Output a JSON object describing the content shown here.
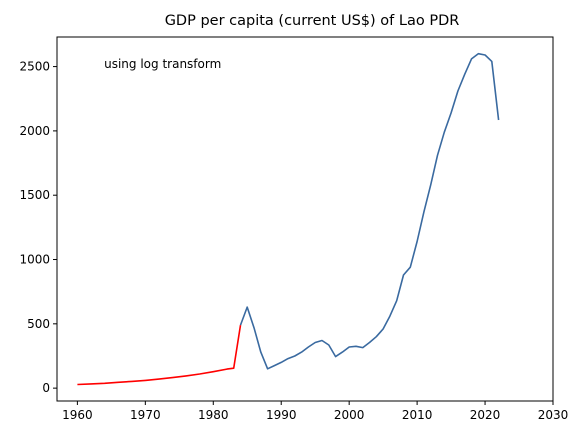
{
  "chart_data": {
    "type": "line",
    "title": "GDP per capita (current US$) of Lao PDR",
    "annotation": "using log transform",
    "xlabel": "",
    "ylabel": "",
    "xlim": [
      1957,
      2030
    ],
    "ylim": [
      -100,
      2730
    ],
    "xticks": [
      1960,
      1970,
      1980,
      1990,
      2000,
      2010,
      2020,
      2030
    ],
    "yticks": [
      0,
      500,
      1000,
      1500,
      2000,
      2500
    ],
    "grid": false,
    "colors": {
      "estimated": "#ff0000",
      "actual": "#3a6aa0"
    },
    "series": [
      {
        "role": "estimated",
        "x": [
          1960,
          1962,
          1964,
          1966,
          1968,
          1970,
          1972,
          1974,
          1976,
          1978,
          1980,
          1982,
          1983,
          1984
        ],
        "y": [
          28,
          33,
          38,
          45,
          52,
          60,
          70,
          82,
          95,
          110,
          128,
          148,
          155,
          490
        ]
      },
      {
        "role": "actual",
        "x": [
          1984,
          1985,
          1986,
          1987,
          1988,
          1989,
          1990,
          1991,
          1992,
          1993,
          1994,
          1995,
          1996,
          1997,
          1998,
          1999,
          2000,
          2001,
          2002,
          2003,
          2004,
          2005,
          2006,
          2007,
          2008,
          2009,
          2010,
          2011,
          2012,
          2013,
          2014,
          2015,
          2016,
          2017,
          2018,
          2019,
          2020,
          2021,
          2022
        ],
        "y": [
          490,
          630,
          470,
          280,
          150,
          175,
          200,
          230,
          250,
          280,
          320,
          355,
          370,
          335,
          245,
          280,
          320,
          325,
          315,
          355,
          400,
          460,
          560,
          680,
          880,
          940,
          1140,
          1370,
          1580,
          1810,
          1990,
          2140,
          2310,
          2440,
          2560,
          2600,
          2590,
          2540,
          2085
        ]
      }
    ]
  }
}
